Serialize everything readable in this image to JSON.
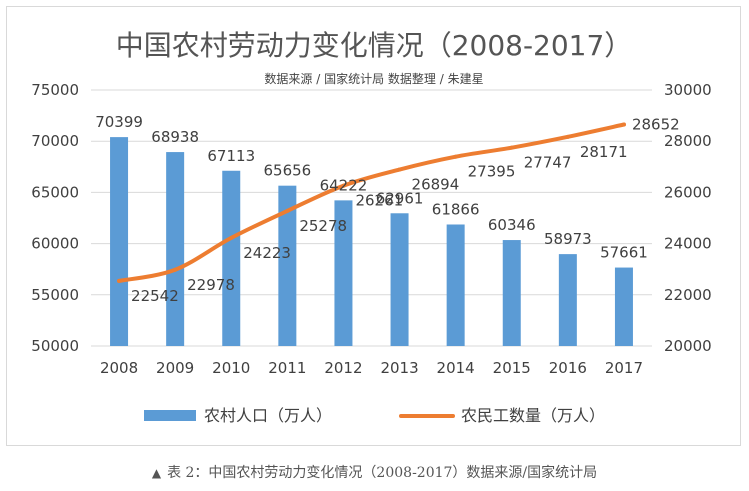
{
  "chart_data": {
    "type": "bar+line",
    "title": "中国农村劳动力变化情况（2008-2017）",
    "subtitle": "数据来源 / 国家统计局 数据整理 / 朱建星",
    "categories": [
      "2008",
      "2009",
      "2010",
      "2011",
      "2012",
      "2013",
      "2014",
      "2015",
      "2016",
      "2017"
    ],
    "series": [
      {
        "name": "农村人口（万人）",
        "type": "bar",
        "axis": "left",
        "color": "#5b9bd5",
        "values": [
          70399,
          68938,
          67113,
          65656,
          64222,
          62961,
          61866,
          60346,
          58973,
          57661
        ],
        "labels": [
          "70399",
          "68938",
          "67113",
          "65656",
          "64222",
          "62961",
          "61866",
          "60346",
          "58973",
          "57661"
        ]
      },
      {
        "name": "农民工数量（万人）",
        "type": "line",
        "axis": "right",
        "color": "#ed7d31",
        "values": [
          22542,
          22978,
          24223,
          25278,
          26261,
          26894,
          27395,
          27747,
          28171,
          28652
        ],
        "labels": [
          "22542",
          "22978",
          "24223",
          "25278",
          "26261",
          "26894",
          "27395",
          "27747",
          "28171",
          "28652"
        ]
      }
    ],
    "y_left": {
      "min": 50000,
      "max": 75000,
      "ticks": [
        "50000",
        "55000",
        "60000",
        "65000",
        "70000",
        "75000"
      ]
    },
    "y_right": {
      "min": 20000,
      "max": 30000,
      "ticks": [
        "20000",
        "22000",
        "24000",
        "26000",
        "28000",
        "30000"
      ]
    },
    "gridlines": true,
    "legend_position": "bottom"
  },
  "caption": {
    "icon": "▲",
    "text": "表 2：中国农村劳动力变化情况（2008-2017）数据来源/国家统计局"
  }
}
